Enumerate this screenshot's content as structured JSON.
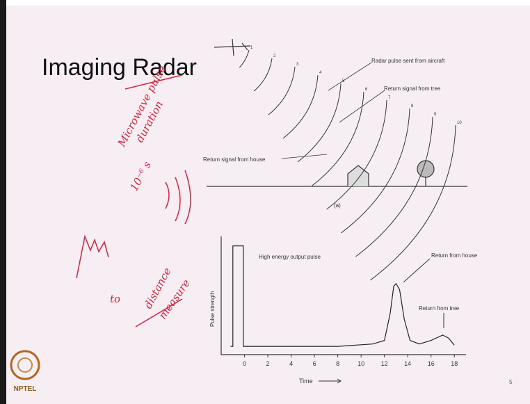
{
  "slide": {
    "title": "Imaging Radar",
    "page_number": "5",
    "logo_text": "NPTEL"
  },
  "diagram": {
    "caption": "(a)",
    "labels": [
      "Radar pulse sent from aircraft",
      "Return signal from tree",
      "Return signal from house"
    ],
    "wavefront_numbers": [
      "1",
      "2",
      "3",
      "4",
      "5",
      "6",
      "7",
      "8",
      "9",
      "10"
    ]
  },
  "pulse_chart": {
    "y_label": "Pulse strength",
    "x_label": "Time",
    "xlim": [
      -2,
      19
    ],
    "ylim": [
      0,
      1
    ],
    "xticks": [
      0,
      2,
      4,
      6,
      8,
      10,
      12,
      14,
      16,
      18
    ],
    "x": [
      -1.2,
      -1,
      -1,
      -0.1,
      -0.1,
      8,
      11,
      12,
      12.5,
      12.8,
      13,
      13.3,
      13.7,
      14.2,
      15,
      16,
      17,
      17.5,
      18
    ],
    "values": [
      0.07,
      0.07,
      0.92,
      0.92,
      0.07,
      0.07,
      0.09,
      0.12,
      0.35,
      0.58,
      0.6,
      0.55,
      0.3,
      0.12,
      0.09,
      0.12,
      0.165,
      0.14,
      0.08
    ],
    "annotations": [
      "High energy output pulse",
      "Return from house",
      "Return from tree"
    ]
  },
  "handwriting": [
    "Microwave pulse",
    "duration",
    "10⁻⁶ s",
    "distance",
    "measure",
    "to"
  ]
}
